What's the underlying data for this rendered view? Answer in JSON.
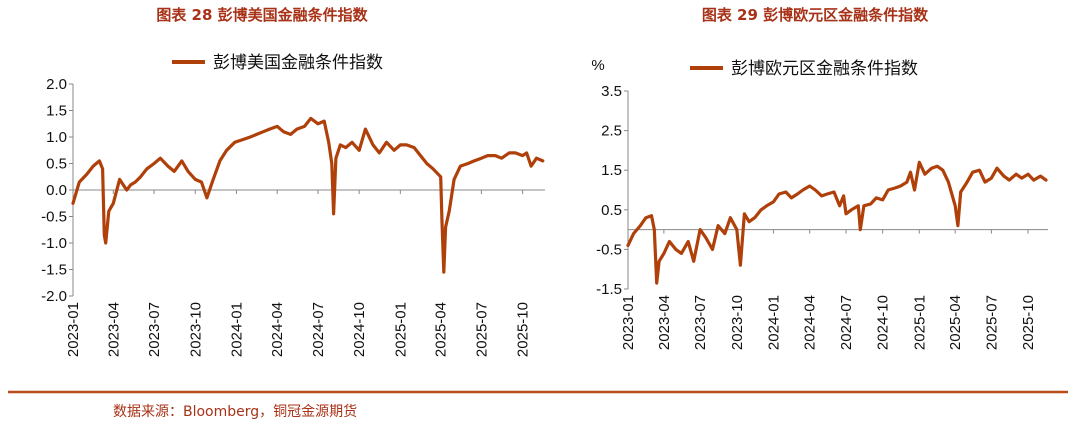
{
  "colors": {
    "series": "#b0400a",
    "title": "#a83218",
    "rule": "#b94a1a",
    "axis": "#888888"
  },
  "source": "数据来源：Bloomberg，铜冠金源期货",
  "chart_data": [
    {
      "type": "line",
      "title": "图表 28  彭博美国金融条件指数",
      "unit": "",
      "ylim": [
        -2.0,
        2.0
      ],
      "yticks": [
        "2.0",
        "1.5",
        "1.0",
        "0.5",
        "0.0",
        "-0.5",
        "-1.0",
        "-1.5",
        "-2.0"
      ],
      "xticks": [
        "2023-01",
        "2023-04",
        "2023-07",
        "2023-10",
        "2024-01",
        "2024-04",
        "2024-07",
        "2024-10",
        "2025-01",
        "2025-04",
        "2025-07",
        "2025-10"
      ],
      "legend": "top-center",
      "grid": false,
      "series": [
        {
          "name": "彭博美国金融条件指数",
          "x": [
            "2023-01-01",
            "2023-01-15",
            "2023-02-01",
            "2023-02-15",
            "2023-03-01",
            "2023-03-08",
            "2023-03-12",
            "2023-03-15",
            "2023-03-22",
            "2023-04-01",
            "2023-04-15",
            "2023-05-01",
            "2023-05-10",
            "2023-05-20",
            "2023-06-01",
            "2023-06-15",
            "2023-07-01",
            "2023-07-15",
            "2023-08-01",
            "2023-08-15",
            "2023-09-01",
            "2023-09-15",
            "2023-10-01",
            "2023-10-15",
            "2023-10-27",
            "2023-11-10",
            "2023-11-25",
            "2023-12-10",
            "2023-12-28",
            "2024-01-15",
            "2024-02-01",
            "2024-02-15",
            "2024-03-01",
            "2024-03-15",
            "2024-04-01",
            "2024-04-15",
            "2024-05-01",
            "2024-05-15",
            "2024-06-01",
            "2024-06-15",
            "2024-07-01",
            "2024-07-15",
            "2024-07-25",
            "2024-08-01",
            "2024-08-05",
            "2024-08-10",
            "2024-08-20",
            "2024-09-01",
            "2024-09-15",
            "2024-10-01",
            "2024-10-15",
            "2024-11-01",
            "2024-11-15",
            "2024-12-01",
            "2024-12-18",
            "2025-01-01",
            "2025-01-15",
            "2025-02-01",
            "2025-02-15",
            "2025-03-01",
            "2025-03-15",
            "2025-04-01",
            "2025-04-04",
            "2025-04-08",
            "2025-04-12",
            "2025-04-20",
            "2025-05-01",
            "2025-05-15",
            "2025-06-01",
            "2025-06-15",
            "2025-07-01",
            "2025-07-15",
            "2025-08-01",
            "2025-08-15",
            "2025-09-01",
            "2025-09-15",
            "2025-10-01",
            "2025-10-10",
            "2025-10-20",
            "2025-11-01",
            "2025-11-15"
          ],
          "values": [
            -0.25,
            0.15,
            0.3,
            0.45,
            0.55,
            0.4,
            -0.85,
            -1.0,
            -0.4,
            -0.25,
            0.2,
            0.0,
            0.1,
            0.15,
            0.25,
            0.4,
            0.5,
            0.6,
            0.45,
            0.35,
            0.55,
            0.35,
            0.2,
            0.15,
            -0.15,
            0.2,
            0.55,
            0.75,
            0.9,
            0.95,
            1.0,
            1.05,
            1.1,
            1.15,
            1.2,
            1.1,
            1.05,
            1.15,
            1.2,
            1.35,
            1.25,
            1.3,
            0.9,
            0.5,
            -0.45,
            0.6,
            0.85,
            0.8,
            0.9,
            0.75,
            1.15,
            0.85,
            0.7,
            0.9,
            0.75,
            0.85,
            0.85,
            0.8,
            0.65,
            0.5,
            0.4,
            0.25,
            -0.6,
            -1.55,
            -0.7,
            -0.4,
            0.2,
            0.45,
            0.5,
            0.55,
            0.6,
            0.65,
            0.65,
            0.6,
            0.7,
            0.7,
            0.65,
            0.7,
            0.45,
            0.6,
            0.55
          ]
        }
      ]
    },
    {
      "type": "line",
      "title": "图表 29 彭博欧元区金融条件指数",
      "unit": "%",
      "ylim": [
        -1.5,
        3.5
      ],
      "yticks": [
        "3.5",
        "2.5",
        "1.5",
        "0.5",
        "-0.5",
        "-1.5"
      ],
      "xticks": [
        "2023-01",
        "2023-04",
        "2023-07",
        "2023-10",
        "2024-01",
        "2024-04",
        "2024-07",
        "2024-10",
        "2025-01",
        "2025-04",
        "2025-07",
        "2025-10"
      ],
      "legend": "top-center",
      "grid": false,
      "series": [
        {
          "name": "彭博欧元区金融条件指数",
          "x": [
            "2023-01-01",
            "2023-01-15",
            "2023-02-01",
            "2023-02-15",
            "2023-03-01",
            "2023-03-08",
            "2023-03-14",
            "2023-03-20",
            "2023-04-01",
            "2023-04-15",
            "2023-05-01",
            "2023-05-15",
            "2023-06-01",
            "2023-06-15",
            "2023-07-01",
            "2023-07-15",
            "2023-08-01",
            "2023-08-15",
            "2023-09-01",
            "2023-09-15",
            "2023-10-01",
            "2023-10-10",
            "2023-10-20",
            "2023-11-01",
            "2023-11-15",
            "2023-12-01",
            "2023-12-15",
            "2024-01-01",
            "2024-01-15",
            "2024-02-01",
            "2024-02-15",
            "2024-03-01",
            "2024-03-15",
            "2024-04-01",
            "2024-04-15",
            "2024-05-01",
            "2024-05-15",
            "2024-06-01",
            "2024-06-15",
            "2024-06-25",
            "2024-07-01",
            "2024-07-15",
            "2024-08-01",
            "2024-08-06",
            "2024-08-15",
            "2024-09-01",
            "2024-09-15",
            "2024-10-01",
            "2024-10-15",
            "2024-11-01",
            "2024-11-15",
            "2024-12-01",
            "2024-12-10",
            "2024-12-20",
            "2025-01-01",
            "2025-01-15",
            "2025-02-01",
            "2025-02-15",
            "2025-03-01",
            "2025-03-15",
            "2025-04-01",
            "2025-04-08",
            "2025-04-15",
            "2025-05-01",
            "2025-05-15",
            "2025-06-01",
            "2025-06-15",
            "2025-07-01",
            "2025-07-15",
            "2025-08-01",
            "2025-08-15",
            "2025-09-01",
            "2025-09-15",
            "2025-10-01",
            "2025-10-15",
            "2025-11-01",
            "2025-11-15"
          ],
          "values": [
            -0.4,
            -0.1,
            0.1,
            0.3,
            0.35,
            0.0,
            -1.35,
            -0.8,
            -0.6,
            -0.3,
            -0.5,
            -0.6,
            -0.3,
            -0.8,
            0.0,
            -0.2,
            -0.5,
            0.1,
            -0.1,
            0.3,
            0.0,
            -0.9,
            0.4,
            0.2,
            0.3,
            0.5,
            0.6,
            0.7,
            0.9,
            0.95,
            0.8,
            0.9,
            1.0,
            1.1,
            1.0,
            0.85,
            0.9,
            0.95,
            0.6,
            0.85,
            0.4,
            0.5,
            0.6,
            0.0,
            0.6,
            0.65,
            0.8,
            0.75,
            1.0,
            1.05,
            1.1,
            1.2,
            1.45,
            1.0,
            1.7,
            1.4,
            1.55,
            1.6,
            1.5,
            1.2,
            0.6,
            0.1,
            0.95,
            1.2,
            1.45,
            1.5,
            1.2,
            1.3,
            1.55,
            1.35,
            1.25,
            1.4,
            1.3,
            1.4,
            1.25,
            1.35,
            1.25
          ]
        }
      ]
    }
  ]
}
